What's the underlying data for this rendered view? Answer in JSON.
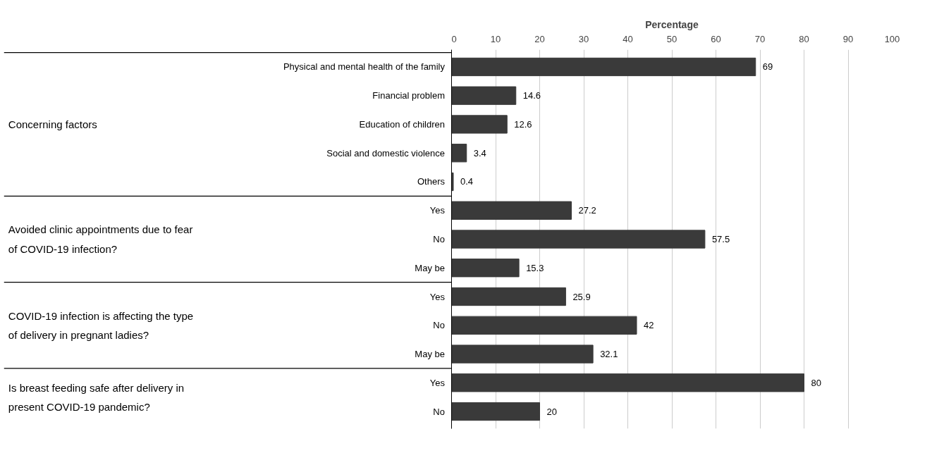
{
  "chart_data": {
    "type": "bar",
    "orientation": "horizontal",
    "xlabel": "Percentage",
    "categories": [
      "Physical and mental health of the family",
      "Financial problem",
      "Education of children",
      "Social and domestic violence",
      "Others",
      "Yes",
      "No",
      "May be",
      "Yes",
      "No",
      "May be",
      "Yes",
      "No"
    ],
    "values": [
      69,
      14.6,
      12.6,
      3.4,
      0.4,
      27.2,
      57.5,
      15.3,
      25.9,
      42,
      32.1,
      80,
      20
    ],
    "color": "#3a3a3a",
    "xlim": [
      0,
      100
    ],
    "xticks": [
      0,
      10,
      20,
      30,
      40,
      50,
      60,
      70,
      80,
      90,
      100
    ],
    "grid": "x",
    "data_labels": true,
    "annotations": [
      "Concerning factors",
      "Avoided clinic appointments due to fear of COVID-19 infection?",
      "COVID-19 infection is affecting the type of delivery in pregnant ladies?",
      "Is breast feeding safe after delivery in present COVID-19 pandemic?"
    ]
  }
}
